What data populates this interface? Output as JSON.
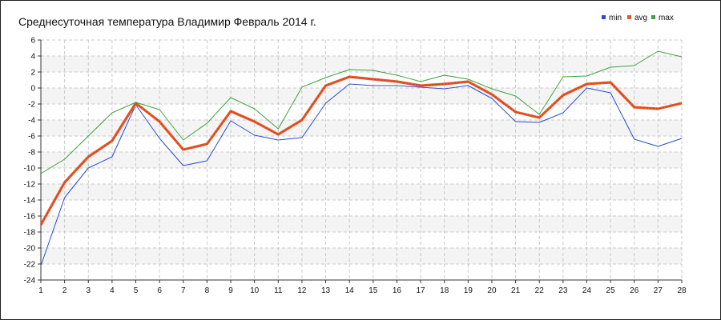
{
  "title": "Среднесуточная температура Владимир  Февраль 2014 г.",
  "legend": [
    {
      "label": "min",
      "color": "#2a4bd7"
    },
    {
      "label": "avg",
      "color": "#e8572a"
    },
    {
      "label": "max",
      "color": "#3ca33c"
    }
  ],
  "chart_data": {
    "type": "line",
    "title": "Среднесуточная температура Владимир  Февраль 2014 г.",
    "xlabel": "",
    "ylabel": "",
    "x": [
      1,
      2,
      3,
      4,
      5,
      6,
      7,
      8,
      9,
      10,
      11,
      12,
      13,
      14,
      15,
      16,
      17,
      18,
      19,
      20,
      21,
      22,
      23,
      24,
      25,
      26,
      27,
      28
    ],
    "xlim": [
      1,
      28
    ],
    "ylim": [
      -24,
      6
    ],
    "yticks": [
      6,
      4,
      2,
      0,
      -2,
      -4,
      -6,
      -8,
      -10,
      -12,
      -14,
      -16,
      -18,
      -20,
      -22,
      -24
    ],
    "grid": true,
    "legend_position": "top-right",
    "series": [
      {
        "name": "min",
        "color": "#2a4bd7",
        "values": [
          -22.2,
          -13.7,
          -10.0,
          -8.6,
          -2.1,
          -6.3,
          -9.7,
          -9.1,
          -4.1,
          -5.9,
          -6.5,
          -6.2,
          -1.9,
          0.5,
          0.3,
          0.3,
          0.1,
          -0.1,
          0.3,
          -1.3,
          -4.2,
          -4.3,
          -3.1,
          0.0,
          -0.6,
          -6.4,
          -7.3,
          -6.3
        ]
      },
      {
        "name": "avg",
        "color": "#e8572a",
        "values": [
          -17.1,
          -11.8,
          -8.6,
          -6.6,
          -1.9,
          -4.2,
          -7.7,
          -7.0,
          -2.9,
          -4.2,
          -5.8,
          -4.0,
          0.3,
          1.4,
          1.1,
          0.8,
          0.3,
          0.5,
          0.8,
          -0.8,
          -3.0,
          -3.7,
          -0.9,
          0.5,
          0.7,
          -2.4,
          -2.6,
          -1.9
        ]
      },
      {
        "name": "max",
        "color": "#3ca33c",
        "values": [
          -10.7,
          -8.9,
          -6.0,
          -3.1,
          -1.8,
          -2.7,
          -6.5,
          -4.4,
          -1.2,
          -2.6,
          -5.1,
          0.1,
          1.3,
          2.3,
          2.2,
          1.6,
          0.8,
          1.6,
          1.1,
          -0.1,
          -1.0,
          -3.3,
          1.4,
          1.5,
          2.6,
          2.8,
          4.6,
          3.9
        ]
      }
    ]
  }
}
